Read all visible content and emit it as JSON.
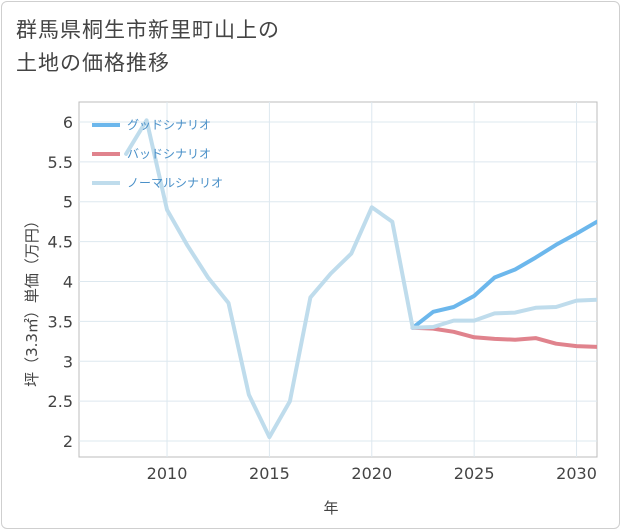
{
  "title_line1": "群馬県桐生市新里町山上の",
  "title_line2": "土地の価格推移",
  "chart_data": {
    "type": "line",
    "xlabel": "年",
    "ylabel": "坪（3.3㎡）単価（万円）",
    "xlim": [
      2005.7,
      2031
    ],
    "ylim": [
      1.8,
      6.25
    ],
    "xticks": [
      2010,
      2015,
      2020,
      2025,
      2030
    ],
    "yticks": [
      2,
      2.5,
      3,
      3.5,
      4,
      4.5,
      5,
      5.5,
      6
    ],
    "ytick_labels": [
      "2",
      "2.5",
      "3",
      "3.5",
      "4",
      "4.5",
      "5",
      "5.5",
      "6"
    ],
    "series": [
      {
        "name": "グッドシナリオ",
        "color": "#6cb7ec",
        "x": [
          2022,
          2023,
          2024,
          2025,
          2026,
          2027,
          2028,
          2029,
          2030,
          2031
        ],
        "y": [
          3.42,
          3.62,
          3.68,
          3.82,
          4.05,
          4.15,
          4.3,
          4.46,
          4.6,
          4.75
        ]
      },
      {
        "name": "バッドシナリオ",
        "color": "#e0838d",
        "x": [
          2022,
          2023,
          2024,
          2025,
          2026,
          2027,
          2028,
          2029,
          2030,
          2031
        ],
        "y": [
          3.42,
          3.41,
          3.37,
          3.3,
          3.28,
          3.27,
          3.29,
          3.22,
          3.19,
          3.18
        ]
      },
      {
        "name": "ノーマルシナリオ",
        "color": "#bfdcec",
        "x": [
          2008,
          2009,
          2010,
          2011,
          2012,
          2013,
          2014,
          2015,
          2016,
          2017,
          2018,
          2019,
          2020,
          2021,
          2022,
          2023,
          2024,
          2025,
          2026,
          2027,
          2028,
          2029,
          2030,
          2031
        ],
        "y": [
          5.6,
          6.02,
          4.9,
          4.45,
          4.05,
          3.73,
          2.58,
          2.05,
          2.5,
          3.8,
          4.1,
          4.35,
          4.93,
          4.75,
          3.42,
          3.43,
          3.51,
          3.51,
          3.6,
          3.61,
          3.67,
          3.68,
          3.76,
          3.77
        ]
      }
    ]
  }
}
